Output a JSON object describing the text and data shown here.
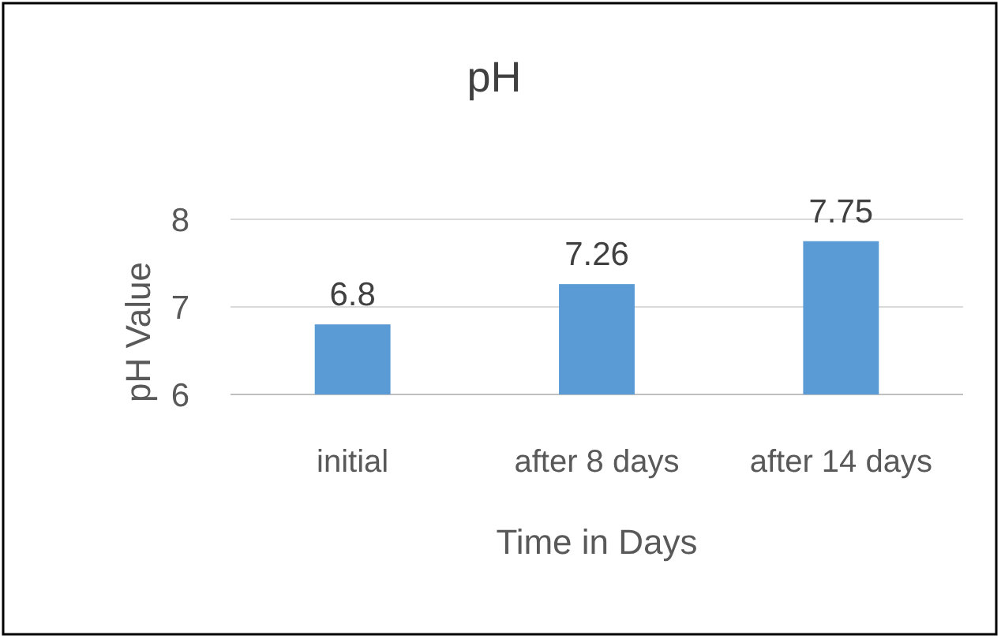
{
  "chart_data": {
    "type": "bar",
    "title": "pH",
    "xlabel": "Time in Days",
    "ylabel": "pH Value",
    "categories": [
      "initial",
      "after 8 days",
      "after 14 days"
    ],
    "values": [
      6.8,
      7.26,
      7.75
    ],
    "color": "#5b9bd5",
    "data_labels": true,
    "ylim": [
      6,
      8
    ],
    "yticks": [
      6,
      7,
      8
    ],
    "grid": "y"
  }
}
